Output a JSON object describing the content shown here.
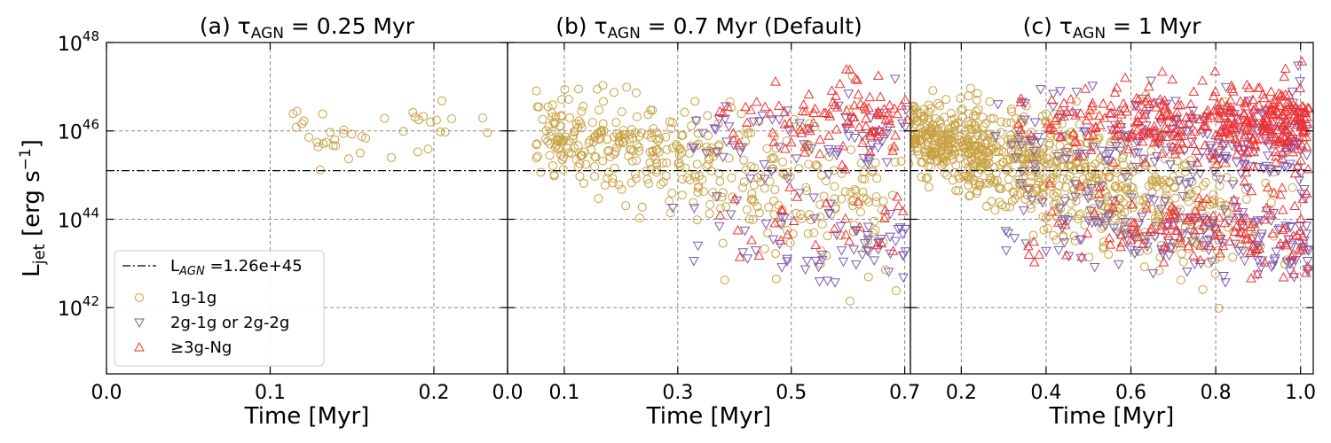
{
  "chart_data": {
    "type": "scatter",
    "y_axis": {
      "label": "L",
      "label_sub": "jet",
      "label_units": " [erg s",
      "label_exp": "−1",
      "label_close": "]",
      "scale": "log",
      "ylim_log10": [
        40.5,
        48
      ],
      "tick_exponents": [
        "48",
        "46",
        "44",
        "42"
      ],
      "tick_base": "10"
    },
    "reference_line": {
      "value": 1.26e+45,
      "legend_label_prefix": "L",
      "legend_label_sub": "AGN",
      "legend_label_suffix": " =1.26e+45",
      "style": "dash-dot"
    },
    "legend": {
      "placement": "lower-left of panel (a)",
      "entries": [
        {
          "label": "1g-1g",
          "marker": "circle",
          "color": "#c8a040"
        },
        {
          "label": "2g-1g or 2g-2g",
          "marker": "triangle-down",
          "color": "#7b5ab0"
        },
        {
          "label": "≥3g-Ng",
          "marker": "triangle-up",
          "color": "#f03030"
        }
      ]
    },
    "panels": [
      {
        "title": "(a) τ",
        "title_sub": "AGN",
        "title_value": " = 0.25 Myr",
        "xlabel": "",
        "xlim": [
          0,
          0.245
        ],
        "xtick_values": [
          0.0,
          0.1,
          0.2
        ],
        "xtick_labels": [
          "0.0",
          "0.1",
          "0.2"
        ],
        "n_1g1g": 40,
        "n_2g": 0,
        "n_3g": 0,
        "seed": 11
      },
      {
        "title": "(b) τ",
        "title_sub": "AGN",
        "title_value": " = 0.7 Myr (Default)",
        "xlabel": "Time [Myr]",
        "xlim": [
          0,
          0.71
        ],
        "xtick_values": [
          0.0,
          0.1,
          0.3,
          0.5,
          0.7
        ],
        "xtick_labels": [
          "0.0",
          "0.1",
          "0.3",
          "0.5",
          "0.7"
        ],
        "n_1g1g": 420,
        "n_2g": 140,
        "n_3g": 130,
        "seed": 23
      },
      {
        "title": "(c) τ",
        "title_sub": "AGN",
        "title_value": " = 1 Myr",
        "xlabel": "Time [Myr]",
        "xlim": [
          0.08,
          1.03
        ],
        "xtick_values": [
          0.2,
          0.4,
          0.6,
          0.8,
          1.0
        ],
        "xtick_labels": [
          "0.2",
          "0.4",
          "0.6",
          "0.8",
          "1.0"
        ],
        "n_1g1g": 900,
        "n_2g": 380,
        "n_3g": 520,
        "seed": 37
      }
    ]
  },
  "shared_xlabel": "Time [Myr]"
}
